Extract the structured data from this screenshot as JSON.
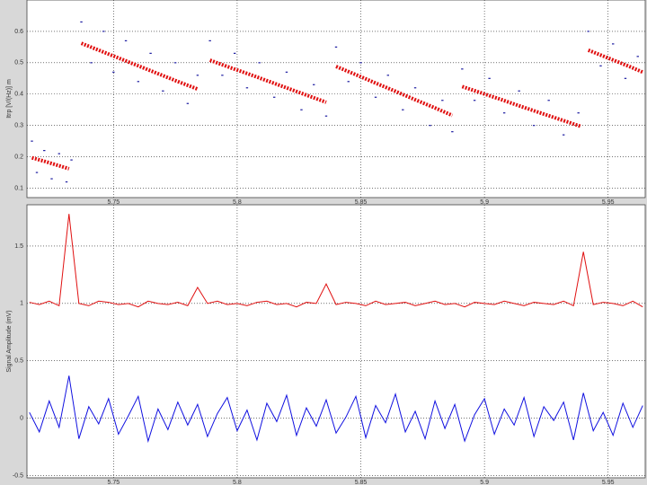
{
  "chart_data": [
    {
      "type": "scatter",
      "y_label": "Itrp [V/(Hz)] m",
      "xlim": [
        5.715,
        5.965
      ],
      "xticks": [
        5.75,
        5.8,
        5.85,
        5.9,
        5.95
      ],
      "ylim": [
        0.07,
        0.7
      ],
      "yticks": [
        0.1,
        0.2,
        0.3,
        0.4,
        0.5,
        0.6
      ],
      "grid": true,
      "series": [
        {
          "color": "#1a1aa0",
          "mode": "markers",
          "x": [
            5.717,
            5.719,
            5.722,
            5.725,
            5.728,
            5.731,
            5.733,
            5.737,
            5.741,
            5.746,
            5.75,
            5.755,
            5.76,
            5.765,
            5.77,
            5.775,
            5.78,
            5.784,
            5.789,
            5.794,
            5.799,
            5.804,
            5.809,
            5.815,
            5.82,
            5.826,
            5.831,
            5.836,
            5.84,
            5.845,
            5.85,
            5.856,
            5.861,
            5.867,
            5.872,
            5.878,
            5.883,
            5.887,
            5.891,
            5.896,
            5.902,
            5.908,
            5.914,
            5.92,
            5.926,
            5.932,
            5.938,
            5.942,
            5.947,
            5.952,
            5.957,
            5.962
          ],
          "values": [
            0.25,
            0.15,
            0.22,
            0.13,
            0.21,
            0.12,
            0.19,
            0.63,
            0.5,
            0.6,
            0.47,
            0.57,
            0.44,
            0.53,
            0.41,
            0.5,
            0.37,
            0.46,
            0.57,
            0.46,
            0.53,
            0.42,
            0.5,
            0.39,
            0.47,
            0.35,
            0.43,
            0.33,
            0.55,
            0.44,
            0.5,
            0.39,
            0.46,
            0.35,
            0.42,
            0.3,
            0.38,
            0.28,
            0.48,
            0.38,
            0.45,
            0.34,
            0.41,
            0.3,
            0.38,
            0.27,
            0.34,
            0.6,
            0.49,
            0.56,
            0.45,
            0.52
          ]
        },
        {
          "color": "#e01010",
          "mode": "line",
          "x": [
            5.717,
            5.722,
            5.727,
            5.732,
            5.734,
            5.737,
            5.745,
            5.753,
            5.761,
            5.769,
            5.777,
            5.784,
            5.786,
            5.789,
            5.797,
            5.805,
            5.813,
            5.821,
            5.829,
            5.836,
            5.8375,
            5.84,
            5.848,
            5.856,
            5.864,
            5.872,
            5.88,
            5.887,
            5.888,
            5.891,
            5.899,
            5.907,
            5.915,
            5.923,
            5.931,
            5.939,
            5.941,
            5.942,
            5.95,
            5.958,
            5.964
          ],
          "values": [
            0.197,
            0.186,
            0.174,
            0.162,
            null,
            0.562,
            0.537,
            0.512,
            0.487,
            0.462,
            0.437,
            0.416,
            null,
            0.508,
            0.485,
            0.463,
            0.44,
            0.417,
            0.394,
            0.374,
            null,
            0.488,
            0.462,
            0.435,
            0.409,
            0.382,
            0.356,
            0.332,
            null,
            0.424,
            0.403,
            0.382,
            0.36,
            0.339,
            0.318,
            0.297,
            null,
            0.54,
            0.515,
            0.49,
            0.47
          ]
        }
      ]
    },
    {
      "type": "line",
      "y_label": "Signal Amplitude (mV)",
      "xlim": [
        5.715,
        5.965
      ],
      "xticks": [
        5.75,
        5.8,
        5.85,
        5.9,
        5.95
      ],
      "ylim": [
        -0.52,
        1.86
      ],
      "yticks": [
        -0.5,
        0,
        0.5,
        1,
        1.5
      ],
      "grid": true,
      "x": [
        5.716,
        5.72,
        5.724,
        5.728,
        5.732,
        5.736,
        5.74,
        5.744,
        5.748,
        5.752,
        5.756,
        5.76,
        5.764,
        5.768,
        5.772,
        5.776,
        5.78,
        5.784,
        5.788,
        5.792,
        5.796,
        5.8,
        5.804,
        5.808,
        5.812,
        5.816,
        5.82,
        5.824,
        5.828,
        5.832,
        5.836,
        5.84,
        5.844,
        5.848,
        5.852,
        5.856,
        5.86,
        5.864,
        5.868,
        5.872,
        5.876,
        5.88,
        5.884,
        5.888,
        5.892,
        5.896,
        5.9,
        5.904,
        5.908,
        5.912,
        5.916,
        5.92,
        5.924,
        5.928,
        5.932,
        5.936,
        5.94,
        5.944,
        5.948,
        5.952,
        5.956,
        5.96,
        5.964
      ],
      "series": [
        {
          "color": "#e01010",
          "values": [
            1.01,
            0.99,
            1.02,
            0.98,
            1.78,
            1.0,
            0.98,
            1.02,
            1.01,
            0.99,
            1.0,
            0.97,
            1.02,
            1.0,
            0.99,
            1.01,
            0.98,
            1.14,
            1.0,
            1.02,
            0.99,
            1.0,
            0.98,
            1.01,
            1.02,
            0.99,
            1.0,
            0.97,
            1.01,
            1.0,
            1.17,
            0.99,
            1.01,
            1.0,
            0.98,
            1.02,
            0.99,
            1.0,
            1.01,
            0.98,
            1.0,
            1.02,
            0.99,
            1.0,
            0.97,
            1.01,
            1.0,
            0.99,
            1.02,
            1.0,
            0.98,
            1.01,
            1.0,
            0.99,
            1.02,
            0.98,
            1.45,
            0.99,
            1.01,
            1.0,
            0.98,
            1.02,
            0.97
          ]
        },
        {
          "color": "#1010e0",
          "values": [
            0.05,
            -0.12,
            0.15,
            -0.08,
            0.37,
            -0.18,
            0.1,
            -0.05,
            0.17,
            -0.14,
            0.02,
            0.19,
            -0.2,
            0.08,
            -0.1,
            0.14,
            -0.06,
            0.12,
            -0.16,
            0.04,
            0.18,
            -0.11,
            0.07,
            -0.19,
            0.13,
            -0.03,
            0.2,
            -0.15,
            0.09,
            -0.07,
            0.16,
            -0.13,
            0.01,
            0.19,
            -0.17,
            0.11,
            -0.04,
            0.21,
            -0.12,
            0.06,
            -0.18,
            0.15,
            -0.09,
            0.12,
            -0.2,
            0.03,
            0.17,
            -0.14,
            0.08,
            -0.06,
            0.18,
            -0.16,
            0.1,
            -0.02,
            0.14,
            -0.19,
            0.22,
            -0.11,
            0.05,
            -0.15,
            0.13,
            -0.08,
            0.11
          ]
        }
      ]
    }
  ]
}
